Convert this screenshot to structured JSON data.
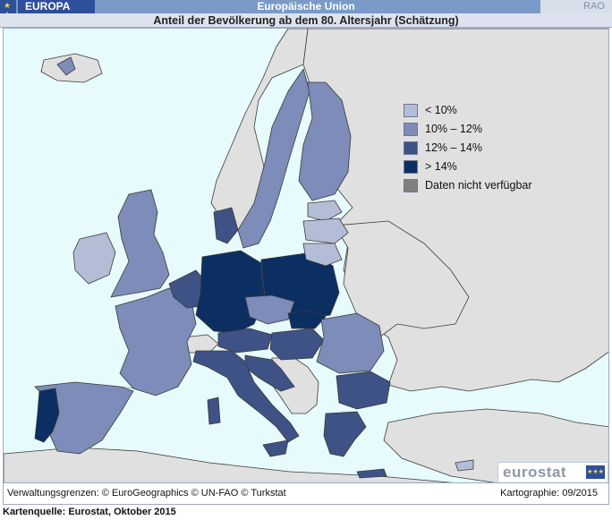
{
  "header": {
    "region_label": "EUROPA",
    "title": "Europäische Union",
    "rao_label": "RAO",
    "subtitle": "Anteil der Bevölkerung ab dem 80. Altersjahr (Schätzung)",
    "flag_icon": "eu-flag-icon"
  },
  "legend": [
    {
      "label": "< 10%",
      "color": "#b4bdd6"
    },
    {
      "label": "10% – 12%",
      "color": "#7d8cb9"
    },
    {
      "label": "12% – 14%",
      "color": "#3e5285"
    },
    {
      "label": "> 14%",
      "color": "#0b2f62"
    },
    {
      "label": "Daten nicht verfügbar",
      "color": "#808080"
    }
  ],
  "colors": {
    "sea": "#e8fbfc",
    "non_eu": "#e0e0e0",
    "border": "#3a3a3a"
  },
  "map_data": {
    "classes": {
      "lt10": [
        "Irland",
        "Estland",
        "Lettland",
        "Litauen",
        "Zypern"
      ],
      "10to12": [
        "Vereinigtes Königreich",
        "Frankreich",
        "Spanien",
        "Finnland",
        "Schweden",
        "Tschechien",
        "Rumänien",
        "Malta"
      ],
      "12to14": [
        "Belgien",
        "Niederlande",
        "Luxemburg",
        "Dänemark",
        "Österreich",
        "Italien",
        "Slowenien",
        "Ungarn",
        "Kroatien",
        "Bulgarien",
        "Griechenland"
      ],
      "gt14": [
        "Portugal",
        "Deutschland",
        "Polen",
        "Slowakei"
      ]
    }
  },
  "logo": {
    "wordmark": "eurostat",
    "icon": "eu-flag-icon"
  },
  "footer": {
    "credits": "Verwaltungsgrenzen: © EuroGeographics © UN-FAO © Turkstat",
    "cartography": "Kartographie: 09/2015"
  },
  "source": "Kartenquelle: Eurostat, Oktober 2015"
}
